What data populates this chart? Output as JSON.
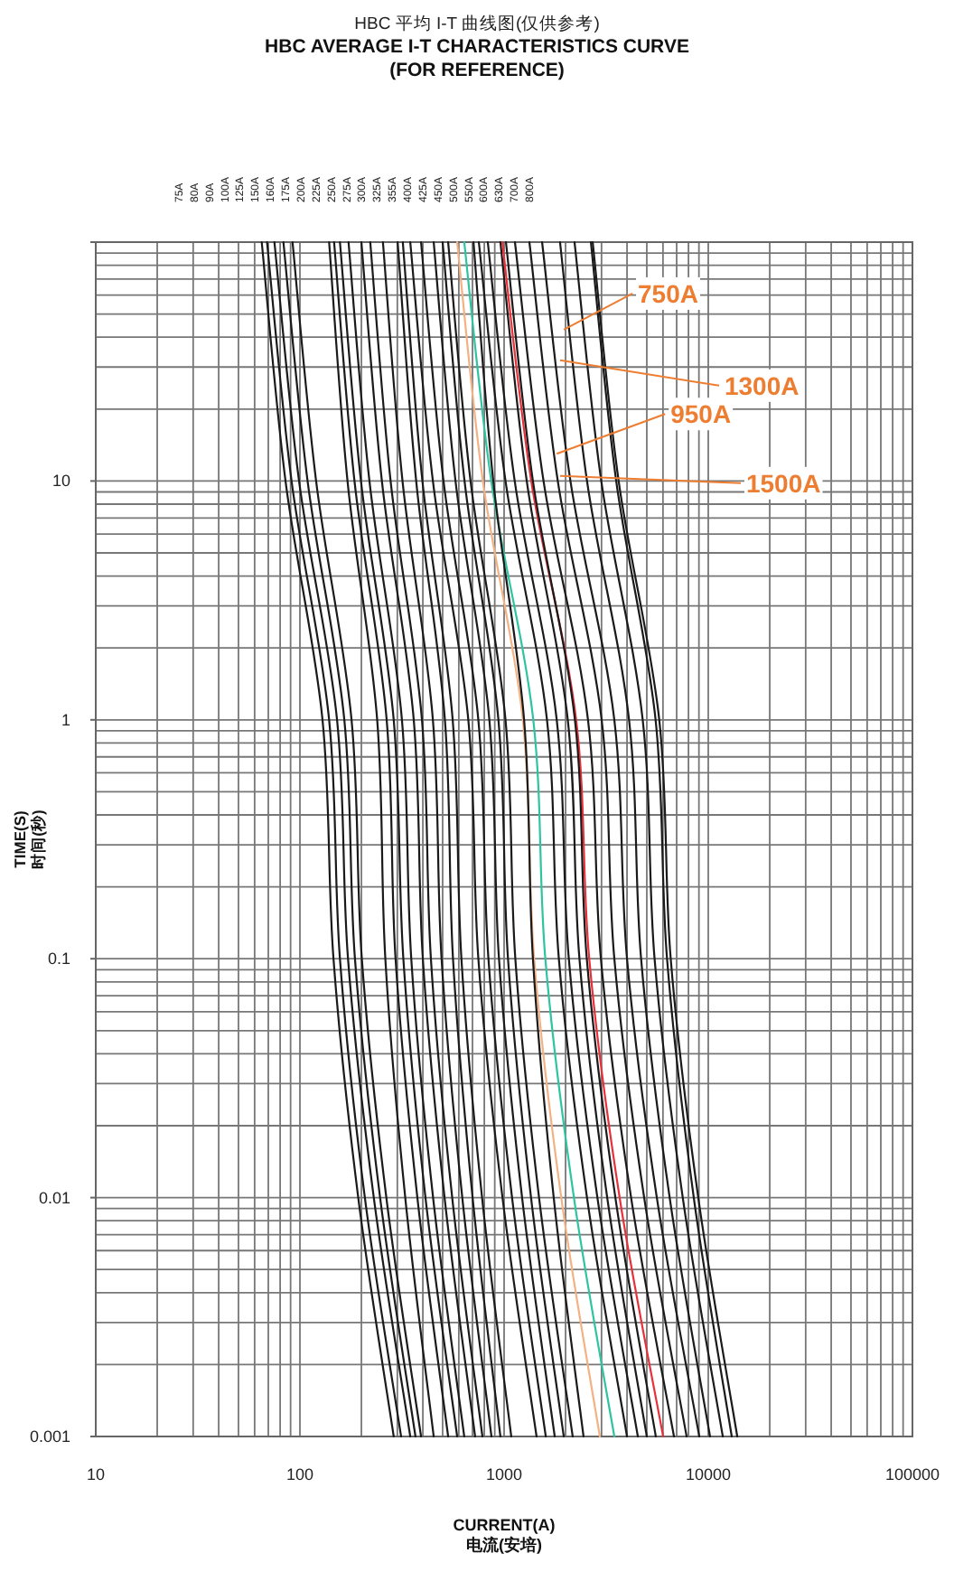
{
  "chart_data": {
    "type": "line",
    "title": "HBC 平均 I-T 曲线图(仅供参考)",
    "subtitle": "HBC  AVERAGE I-T CHARACTERISTICS CURVE\n(FOR REFERENCE)",
    "xlabel": "CURRENT(A)\n电流(安培)",
    "ylabel": "TIME(S)\n时间(秒)",
    "log": "xy",
    "xlim": [
      10,
      100000
    ],
    "ylim": [
      0.001,
      100
    ],
    "xticks": [
      10,
      100,
      1000,
      10000,
      100000
    ],
    "yticks": [
      {
        "value": 100,
        "label": null
      },
      10,
      1,
      0.1,
      0.01,
      0.001
    ],
    "grid": true,
    "marker": "none",
    "line_style": "solid",
    "annotations": [
      {
        "text": "750A",
        "x": 1960,
        "y": 43
      },
      {
        "text": "1300A",
        "x": 1880,
        "y": 32
      },
      {
        "text": "950A",
        "x": 1810,
        "y": 13
      },
      {
        "text": "1500A",
        "x": 1880,
        "y": 10.5
      },
      "75A",
      "80A",
      "90A",
      "100A",
      "125A",
      "150A",
      "160A",
      "175A",
      "200A",
      "225A",
      "250A",
      "275A",
      "300A",
      "325A",
      "355A",
      "400A",
      "425A",
      "450A",
      "500A",
      "550A",
      "600A",
      "630A",
      "700A",
      "800A"
    ],
    "series": [
      {
        "color": "#1a1a1a",
        "x": [
          65,
          85,
          129,
          146,
          193,
          288
        ],
        "values": [
          100,
          10,
          1,
          0.1,
          0.01,
          0.001
        ]
      },
      {
        "color": "#1a1a1a",
        "x": [
          69,
          91,
          139,
          157,
          208,
          313
        ],
        "values": [
          100,
          10,
          1,
          0.1,
          0.01,
          0.001
        ]
      },
      {
        "color": "#1a1a1a",
        "x": [
          75,
          99,
          152,
          172,
          230,
          347
        ],
        "values": [
          100,
          10,
          1,
          0.1,
          0.01,
          0.001
        ]
      },
      {
        "color": "#1a1a1a",
        "x": [
          83,
          109,
          165,
          186,
          247,
          368
        ],
        "values": [
          100,
          10,
          1,
          0.1,
          0.01,
          0.001
        ]
      },
      {
        "color": "#1a1a1a",
        "x": [
          92,
          120,
          179,
          201,
          265,
          392
        ],
        "values": [
          100,
          10,
          1,
          0.1,
          0.01,
          0.001
        ]
      },
      {
        "color": "#1a1a1a",
        "x": [
          139,
          171,
          239,
          262,
          328,
          452
        ],
        "values": [
          100,
          10,
          1,
          0.1,
          0.01,
          0.001
        ]
      },
      {
        "color": "#1a1a1a",
        "x": [
          147,
          185,
          266,
          294,
          376,
          532
        ],
        "values": [
          100,
          10,
          1,
          0.1,
          0.01,
          0.001
        ]
      },
      {
        "color": "#1a1a1a",
        "x": [
          157,
          199,
          288,
          321,
          412,
          589
        ],
        "values": [
          100,
          10,
          1,
          0.1,
          0.01,
          0.001
        ]
      },
      {
        "color": "#1a1a1a",
        "x": [
          173,
          219,
          316,
          351,
          449,
          638
        ],
        "values": [
          100,
          10,
          1,
          0.1,
          0.01,
          0.001
        ]
      },
      {
        "color": "#1a1a1a",
        "x": [
          200,
          252,
          361,
          400,
          511,
          721
        ],
        "values": [
          100,
          10,
          1,
          0.1,
          0.01,
          0.001
        ]
      },
      {
        "color": "#1a1a1a",
        "x": [
          221,
          278,
          396,
          438,
          557,
          783
        ],
        "values": [
          100,
          10,
          1,
          0.1,
          0.01,
          0.001
        ]
      },
      {
        "color": "#1a1a1a",
        "x": [
          255,
          318,
          448,
          494,
          624,
          867
        ],
        "values": [
          100,
          10,
          1,
          0.1,
          0.01,
          0.001
        ]
      },
      {
        "color": "#1a1a1a",
        "x": [
          301,
          371,
          513,
          562,
          701,
          959
        ],
        "values": [
          100,
          10,
          1,
          0.1,
          0.01,
          0.001
        ]
      },
      {
        "color": "#1a1a1a",
        "x": [
          319,
          398,
          560,
          618,
          780,
          1084
        ],
        "values": [
          100,
          10,
          1,
          0.1,
          0.01,
          0.001
        ]
      },
      {
        "color": "#1a1a1a",
        "x": [
          347,
          448,
          668,
          748,
          982,
          1442
        ],
        "values": [
          100,
          10,
          1,
          0.1,
          0.01,
          0.001
        ]
      },
      {
        "color": "#1a1a1a",
        "x": [
          392,
          505,
          748,
          838,
          1094,
          1600
        ],
        "values": [
          100,
          10,
          1,
          0.1,
          0.01,
          0.001
        ]
      },
      {
        "color": "#1a1a1a",
        "x": [
          452,
          578,
          847,
          944,
          1225,
          1770
        ],
        "values": [
          100,
          10,
          1,
          0.1,
          0.01,
          0.001
        ]
      },
      {
        "color": "#1a1a1a",
        "x": [
          500,
          640,
          938,
          1045,
          1355,
          1960
        ],
        "values": [
          100,
          10,
          1,
          0.1,
          0.01,
          0.001
        ]
      },
      {
        "color": "#1a1a1a",
        "x": [
          532,
          685,
          1016,
          1135,
          1483,
          2168
        ],
        "values": [
          100,
          10,
          1,
          0.1,
          0.01,
          0.001
        ]
      },
      {
        "color": "#f4b183",
        "x": [
          589,
          787,
          1236,
          1403,
          1905,
          2944
        ],
        "values": [
          100,
          10,
          1,
          0.1,
          0.01,
          0.001
        ]
      },
      {
        "color": "#2ec4a0",
        "x": [
          638,
          865,
          1390,
          1592,
          2198,
          3467
        ],
        "values": [
          100,
          10,
          1,
          0.1,
          0.01,
          0.001
        ]
      },
      {
        "color": "#1a1a1a",
        "x": [
          708,
          885,
          1253,
          1384,
          1750,
          2449
        ],
        "values": [
          100,
          10,
          1,
          0.1,
          0.01,
          0.001
        ]
      },
      {
        "color": "#1a1a1a",
        "x": [
          752,
          1016,
          1622,
          1854,
          2547,
          4000
        ],
        "values": [
          100,
          10,
          1,
          0.1,
          0.01,
          0.001
        ]
      },
      {
        "color": "#1a1a1a",
        "x": [
          832,
          1127,
          1811,
          2075,
          2864,
          4519
        ],
        "values": [
          100,
          10,
          1,
          0.1,
          0.01,
          0.001
        ]
      },
      {
        "color": "#1a1a1a",
        "x": [
          959,
          1291,
          2051,
          2339,
          3199,
          5000
        ],
        "values": [
          100,
          10,
          1,
          0.1,
          0.01,
          0.001
        ]
      },
      {
        "color": "#e8303a",
        "x": [
          980,
          1358,
          2254,
          2612,
          3681,
          6012
        ],
        "values": [
          100,
          10,
          1,
          0.1,
          0.01,
          0.001
        ]
      },
      {
        "color": "#1a1a1a",
        "x": [
          1021,
          1384,
          2223,
          2541,
          3508,
          5534
        ],
        "values": [
          100,
          10,
          1,
          0.1,
          0.01,
          0.001
        ]
      },
      {
        "color": "#1a1a1a",
        "x": [
          1130,
          1560,
          2576,
          2979,
          4188,
          6792
        ],
        "values": [
          100,
          10,
          1,
          0.1,
          0.01,
          0.001
        ]
      },
      {
        "color": "#1a1a1a",
        "x": [
          1330,
          1832,
          3006,
          3467,
          4853,
          7834
        ],
        "values": [
          100,
          10,
          1,
          0.1,
          0.01,
          0.001
        ]
      },
      {
        "color": "#1a1a1a",
        "x": [
          1535,
          2113,
          3467,
          4000,
          5598,
          9036
        ],
        "values": [
          100,
          10,
          1,
          0.1,
          0.01,
          0.001
        ]
      },
      {
        "color": "#1a1a1a",
        "x": [
          1879,
          2547,
          4093,
          4688,
          6471,
          10200
        ],
        "values": [
          100,
          10,
          1,
          0.1,
          0.01,
          0.001
        ]
      },
      {
        "color": "#1a1a1a",
        "x": [
          2213,
          2992,
          4775,
          5458,
          7499,
          11780
        ],
        "values": [
          100,
          10,
          1,
          0.1,
          0.01,
          0.001
        ]
      },
      {
        "color": "#1a1a1a",
        "x": [
          2661,
          3540,
          5521,
          6281,
          8492,
          13030
        ],
        "values": [
          100,
          10,
          1,
          0.1,
          0.01,
          0.001
        ]
      },
      {
        "color": "#1a1a1a",
        "x": [
          2716,
          3639,
          5754,
          6546,
          8933,
          13870
        ],
        "values": [
          100,
          10,
          1,
          0.1,
          0.01,
          0.001
        ]
      }
    ]
  }
}
